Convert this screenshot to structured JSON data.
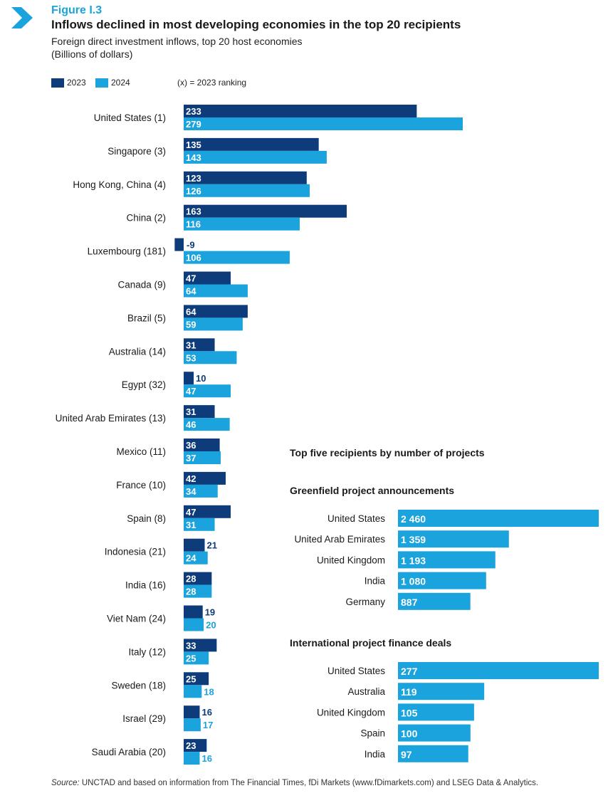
{
  "figure": {
    "label": "Figure I.3",
    "title": "Inflows declined in most developing economies in the top 20 recipients",
    "subtitle": "Foreign direct investment inflows, top 20 host economies",
    "unit": "(Billions of dollars)"
  },
  "legend": {
    "items": [
      {
        "label": "2023",
        "color": "#0e3b7a"
      },
      {
        "label": "2024",
        "color": "#1ba3dd"
      }
    ],
    "note": "(x) = 2023 ranking"
  },
  "chart_data": [
    {
      "type": "bar",
      "orientation": "horizontal",
      "title": "Foreign direct investment inflows, top 20 host economies",
      "unit": "Billions of dollars",
      "categories": [
        "United States (1)",
        "Singapore (3)",
        "Hong Kong, China (4)",
        "China (2)",
        "Luxembourg (181)",
        "Canada (9)",
        "Brazil (5)",
        "Australia (14)",
        "Egypt (32)",
        "United Arab Emirates (13)",
        "Mexico (11)",
        "France (10)",
        "Spain (8)",
        "Indonesia (21)",
        "India (16)",
        "Viet Nam (24)",
        "Italy (12)",
        "Sweden (18)",
        "Israel (29)",
        "Saudi Arabia (20)"
      ],
      "series": [
        {
          "name": "2023",
          "color": "#0e3b7a",
          "values": [
            233,
            135,
            123,
            163,
            -9,
            47,
            64,
            31,
            10,
            31,
            36,
            42,
            47,
            21,
            28,
            19,
            33,
            25,
            16,
            23
          ]
        },
        {
          "name": "2024",
          "color": "#1ba3dd",
          "values": [
            279,
            143,
            126,
            116,
            106,
            64,
            59,
            53,
            47,
            46,
            37,
            34,
            31,
            24,
            28,
            20,
            25,
            18,
            17,
            16
          ]
        }
      ],
      "grid": false,
      "legend_position": "top-left"
    },
    {
      "type": "bar",
      "orientation": "horizontal",
      "title": "Top five recipients by number of projects",
      "panels": [
        {
          "title": "Greenfield project announcements",
          "categories": [
            "United States",
            "United Arab Emirates",
            "United Kingdom",
            "India",
            "Germany"
          ],
          "values": [
            2460,
            1359,
            1193,
            1080,
            887
          ],
          "labels": [
            "2 460",
            "1 359",
            "1 193",
            "1 080",
            "887"
          ],
          "color": "#1ba3dd"
        },
        {
          "title": "International project finance deals",
          "categories": [
            "United States",
            "Australia",
            "United Kingdom",
            "Spain",
            "India"
          ],
          "values": [
            277,
            119,
            105,
            100,
            97
          ],
          "labels": [
            "277",
            "119",
            "105",
            "100",
            "97"
          ],
          "color": "#1ba3dd"
        }
      ]
    }
  ],
  "source": {
    "label": "Source:",
    "text": "UNCTAD and based on information from The Financial Times, fDi Markets (www.fDimarkets.com) and LSEG Data & Analytics."
  }
}
